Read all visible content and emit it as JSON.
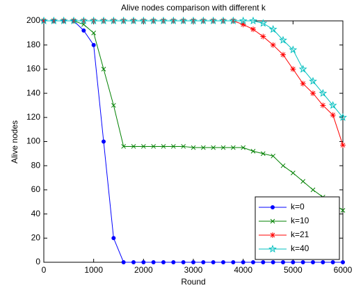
{
  "chart_data": {
    "type": "line",
    "title": "Alive nodes comparison with different k",
    "x_label": "Round",
    "y_label": "Alive nodes",
    "x": [
      0,
      200,
      400,
      600,
      800,
      1000,
      1200,
      1400,
      1600,
      1800,
      2000,
      2200,
      2400,
      2600,
      2800,
      3000,
      3200,
      3400,
      3600,
      3800,
      4000,
      4200,
      4400,
      4600,
      4800,
      5000,
      5200,
      5400,
      5600,
      5800,
      6000
    ],
    "series": [
      {
        "name": "k=0",
        "color": "#0000ff",
        "marker": "o",
        "values": [
          200,
          200,
          200,
          200,
          192,
          180,
          100,
          20,
          0,
          0,
          0,
          0,
          0,
          0,
          0,
          0,
          0,
          0,
          0,
          0,
          0,
          0,
          0,
          0,
          0,
          0,
          0,
          0,
          0,
          0,
          0
        ]
      },
      {
        "name": "k=10",
        "color": "#008000",
        "marker": "x",
        "values": [
          200,
          200,
          200,
          200,
          197,
          190,
          160,
          130,
          96,
          96,
          96,
          96,
          96,
          96,
          96,
          95,
          95,
          95,
          95,
          95,
          95,
          92,
          90,
          88,
          80,
          74,
          67,
          60,
          54,
          49,
          43
        ]
      },
      {
        "name": "k=21",
        "color": "#ff0000",
        "marker": "*",
        "values": [
          200,
          200,
          200,
          200,
          200,
          200,
          200,
          200,
          200,
          200,
          200,
          200,
          200,
          200,
          200,
          200,
          200,
          200,
          200,
          200,
          197,
          193,
          187,
          180,
          172,
          160,
          148,
          140,
          130,
          122,
          97
        ]
      },
      {
        "name": "k=40",
        "color": "#00bfbf",
        "marker": "p",
        "values": [
          200,
          200,
          200,
          200,
          200,
          200,
          200,
          200,
          200,
          200,
          200,
          200,
          200,
          200,
          200,
          200,
          200,
          200,
          200,
          200,
          200,
          200,
          198,
          193,
          184,
          176,
          160,
          150,
          140,
          130,
          120
        ]
      }
    ],
    "xlim": [
      0,
      6000
    ],
    "xticks": [
      0,
      1000,
      2000,
      3000,
      4000,
      5000,
      6000
    ],
    "ylim": [
      0,
      200
    ],
    "yticks": [
      0,
      20,
      40,
      60,
      80,
      100,
      120,
      140,
      160,
      180,
      200
    ],
    "grid": false,
    "legend": "lower right"
  }
}
